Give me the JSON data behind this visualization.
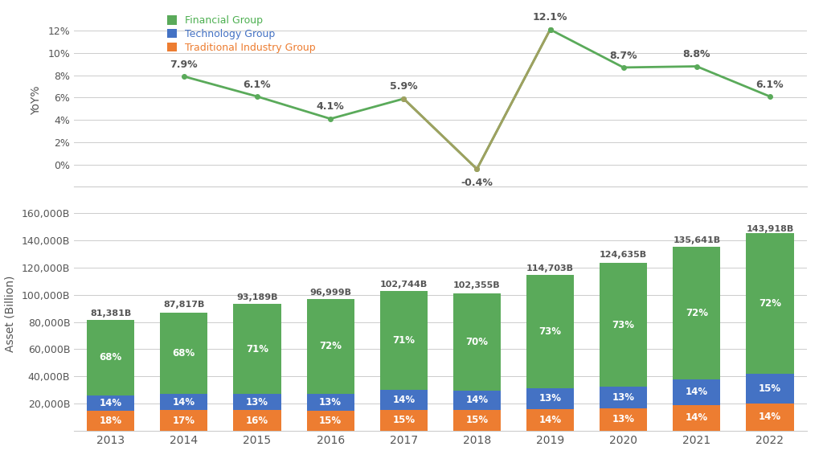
{
  "years": [
    2013,
    2014,
    2015,
    2016,
    2017,
    2018,
    2019,
    2020,
    2021,
    2022
  ],
  "yoy": [
    null,
    7.9,
    6.1,
    4.1,
    5.9,
    -0.4,
    12.1,
    8.7,
    8.8,
    6.1
  ],
  "yoy_labels": [
    "",
    "7.9%",
    "6.1%",
    "4.1%",
    "5.9%",
    "-0.4%",
    "12.1%",
    "8.7%",
    "8.8%",
    "6.1%"
  ],
  "total_assets": [
    81381,
    87817,
    93189,
    96999,
    102744,
    102355,
    114703,
    124635,
    135641,
    143918
  ],
  "total_labels": [
    "81,381B",
    "87,817B",
    "93,189B",
    "96,999B",
    "102,744B",
    "102,355B",
    "114,703B",
    "124,635B",
    "135,641B",
    "143,918B"
  ],
  "financial_pct": [
    68,
    68,
    71,
    72,
    71,
    70,
    73,
    73,
    72,
    72
  ],
  "technology_pct": [
    14,
    14,
    13,
    13,
    14,
    14,
    13,
    13,
    14,
    15
  ],
  "traditional_pct": [
    18,
    17,
    16,
    15,
    15,
    15,
    14,
    13,
    14,
    14
  ],
  "financial_color": "#5aaa5a",
  "technology_color": "#4472c4",
  "traditional_color": "#ed7d31",
  "olive_color": "#a0a060",
  "bg_color": "#ffffff",
  "grid_color": "#cccccc",
  "ylabel_top": "YoY%",
  "ylabel_bottom": "Asset (Billion)",
  "legend_labels": [
    "Financial Group",
    "Technology Group",
    "Traditional Industry Group"
  ],
  "legend_colors_text": [
    "#4caf50",
    "#4472c4",
    "#ed7d31"
  ],
  "annotation_color": "#555555",
  "tick_color": "#555555"
}
